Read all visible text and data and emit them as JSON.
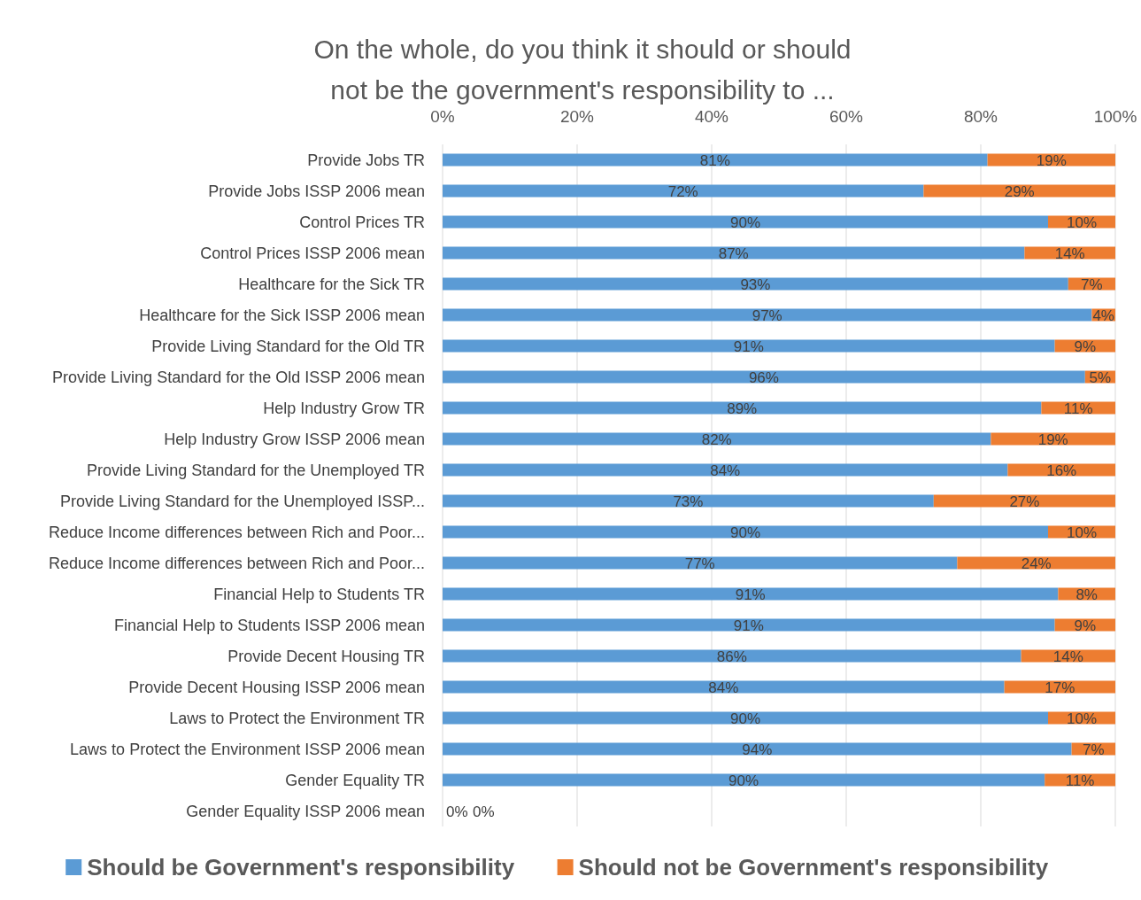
{
  "chart_data": {
    "type": "bar",
    "orientation": "horizontal",
    "stacked": true,
    "title": "On the whole, do you think it should or should not be the government's responsibility to ...",
    "categories": [
      "Provide Jobs TR",
      "Provide Jobs ISSP 2006 mean",
      "Control Prices TR",
      "Control Prices ISSP 2006 mean",
      "Healthcare for the Sick TR",
      "Healthcare for the Sick ISSP 2006 mean",
      "Provide Living Standard for the Old TR",
      "Provide Living Standard for the Old ISSP 2006 mean",
      "Help Industry Grow TR",
      "Help Industry Grow ISSP 2006 mean",
      "Provide Living Standard for the Unemployed TR",
      "Provide Living Standard for the Unemployed ISSP...",
      "Reduce Income differences between Rich and Poor...",
      "Reduce Income differences between Rich and Poor...",
      "Financial Help to Students TR",
      "Financial Help to Students ISSP 2006 mean",
      "Provide Decent Housing TR",
      "Provide Decent Housing ISSP 2006 mean",
      "Laws to Protect the Environment TR",
      "Laws to Protect the Environment ISSP 2006 mean",
      "Gender Equality TR",
      "Gender Equality ISSP 2006 mean"
    ],
    "series": [
      {
        "name": "Should be Government's responsibility",
        "color": "#5b9bd5",
        "values": [
          81,
          71.5,
          90,
          86.5,
          93,
          96.5,
          91,
          95.5,
          89,
          81.5,
          84,
          73,
          90,
          76.5,
          91.5,
          91,
          86,
          83.5,
          90,
          93.5,
          89.5,
          0
        ],
        "value_labels": [
          "81%",
          "72%",
          "90%",
          "87%",
          "93%",
          "97%",
          "91%",
          "96%",
          "89%",
          "82%",
          "84%",
          "73%",
          "90%",
          "77%",
          "91%",
          "91%",
          "86%",
          "84%",
          "90%",
          "94%",
          "90%",
          "0%"
        ]
      },
      {
        "name": "Should not be Government's responsibility",
        "color": "#ed7d31",
        "values": [
          19,
          28.5,
          10,
          13.5,
          7,
          3.5,
          9,
          4.5,
          11,
          18.5,
          16,
          27,
          10,
          23.5,
          8.5,
          9,
          14,
          16.5,
          10,
          6.5,
          10.5,
          0
        ],
        "value_labels": [
          "19%",
          "29%",
          "10%",
          "14%",
          "7%",
          "4%",
          "9%",
          "5%",
          "11%",
          "19%",
          "16%",
          "27%",
          "10%",
          "24%",
          "8%",
          "9%",
          "14%",
          "17%",
          "10%",
          "7%",
          "11%",
          "0%"
        ]
      }
    ],
    "xlim": [
      0,
      100
    ],
    "xticks": [
      {
        "value": 0,
        "label": "0%"
      },
      {
        "value": 20,
        "label": "20%"
      },
      {
        "value": 40,
        "label": "40%"
      },
      {
        "value": 60,
        "label": "60%"
      },
      {
        "value": 80,
        "label": "80%"
      },
      {
        "value": 100,
        "label": "100%"
      }
    ],
    "grid": "x",
    "legend": "bottom"
  }
}
